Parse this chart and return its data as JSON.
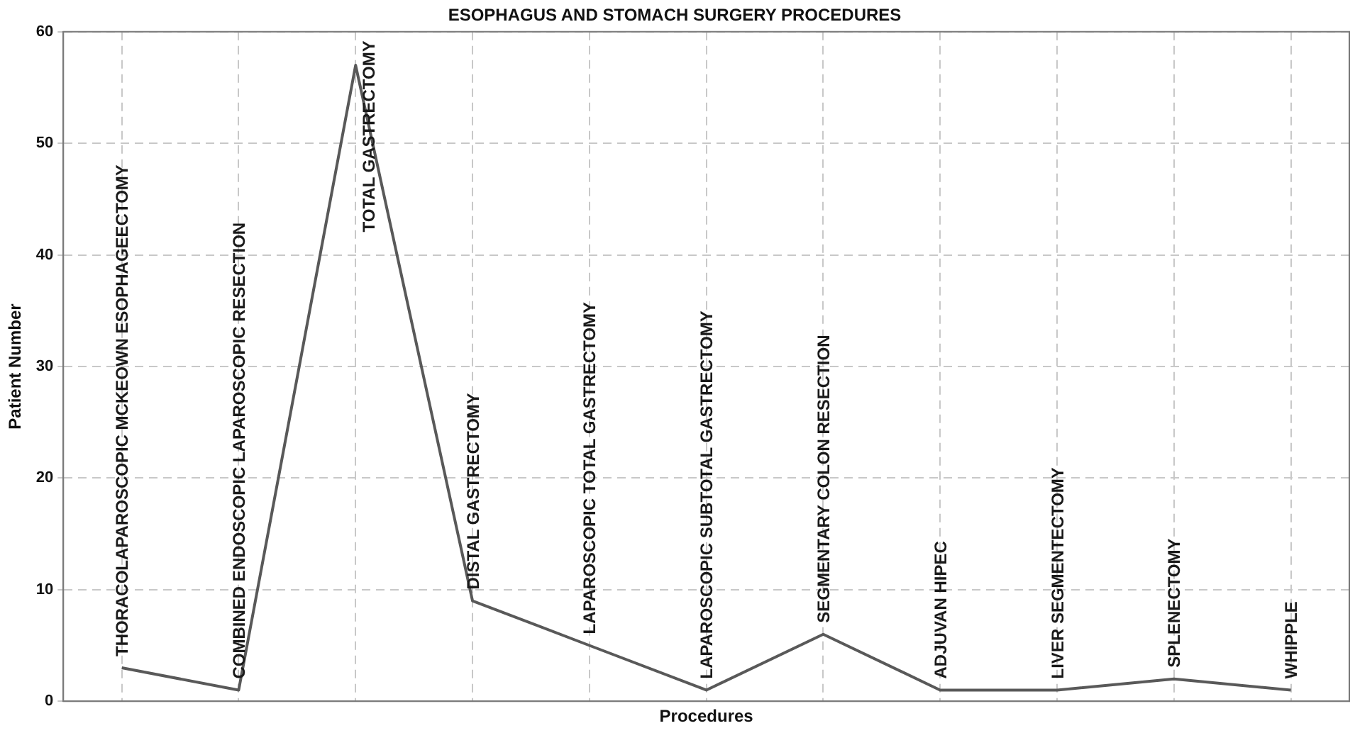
{
  "chart_data": {
    "type": "line",
    "title": "ESOPHAGUS AND STOMACH SURGERY PROCEDURES",
    "xlabel": "Procedures",
    "ylabel": "Patient Number",
    "categories": [
      "THORACOLAPAROSCOPIC MCKEOWN ESOPHAGEECTOMY",
      "COMBINED ENDOSCOPIC LAPAROSCOPIC RESECTION",
      "TOTAL GASTRECTOMY",
      "DISTAL GASTRECTOMY",
      "LAPAROSCOPIC TOTAL GASTRECTOMY",
      "LAPAROSCOPIC SUBTOTAL GASTRECTOMY",
      "SEGMENTARY COLON RESECTION",
      "ADJUVAN HIPEC",
      "LIVER SEGMENTECTOMY",
      "SPLENECTOMY",
      "WHIPPLE"
    ],
    "series": [
      {
        "color": "#595959",
        "values": [
          3,
          1,
          57,
          9,
          5,
          1,
          6,
          1,
          1,
          2,
          1
        ]
      }
    ],
    "ylim": [
      0,
      60
    ],
    "yticks": [
      0,
      10,
      20,
      30,
      40,
      50,
      60
    ],
    "grid": true,
    "legend": false,
    "marker": "none",
    "line_style": "solid"
  }
}
